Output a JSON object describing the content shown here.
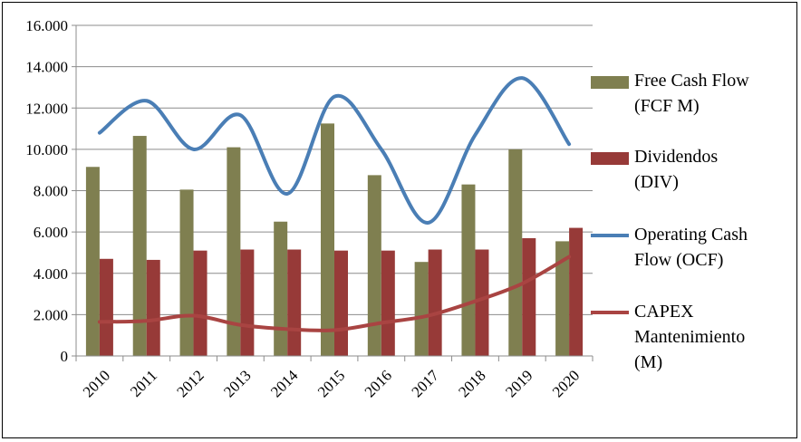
{
  "chart_data": {
    "type": "bar",
    "categories": [
      "2010",
      "2011",
      "2012",
      "2013",
      "2014",
      "2015",
      "2016",
      "2017",
      "2018",
      "2019",
      "2020"
    ],
    "series": [
      {
        "name": "Free Cash Flow (FCF M)",
        "kind": "bar",
        "color": "#7f7f50",
        "values": [
          9150,
          10650,
          8050,
          10100,
          6500,
          11250,
          8750,
          4550,
          8300,
          10000,
          5550
        ]
      },
      {
        "name": "Dividendos (DIV)",
        "kind": "bar",
        "color": "#973a38",
        "values": [
          4700,
          4650,
          5100,
          5150,
          5150,
          5100,
          5100,
          5150,
          5150,
          5700,
          6200
        ]
      },
      {
        "name": "Operating Cash Flow (OCF)",
        "kind": "line",
        "color": "#4a7eb5",
        "values": [
          10800,
          12350,
          10000,
          11650,
          7850,
          12550,
          10000,
          6450,
          10700,
          13450,
          10250
        ]
      },
      {
        "name": "CAPEX Mantenimiento (M)",
        "kind": "line",
        "color": "#a94442",
        "values": [
          1650,
          1700,
          1950,
          1500,
          1300,
          1250,
          1600,
          1950,
          2650,
          3500,
          4800
        ]
      }
    ],
    "ylim": [
      0,
      16000
    ],
    "yticks": [
      "0",
      "2.000",
      "4.000",
      "6.000",
      "8.000",
      "10.000",
      "12.000",
      "14.000",
      "16.000"
    ],
    "legend_position": "right",
    "legend": [
      {
        "lines": [
          "Free Cash Flow",
          "(FCF M)"
        ]
      },
      {
        "lines": [
          "Dividendos",
          "(DIV)"
        ]
      },
      {
        "lines": [
          "Operating Cash",
          "Flow (OCF)"
        ]
      },
      {
        "lines": [
          "CAPEX",
          "Mantenimiento",
          "(M)"
        ]
      }
    ],
    "grid": true
  }
}
